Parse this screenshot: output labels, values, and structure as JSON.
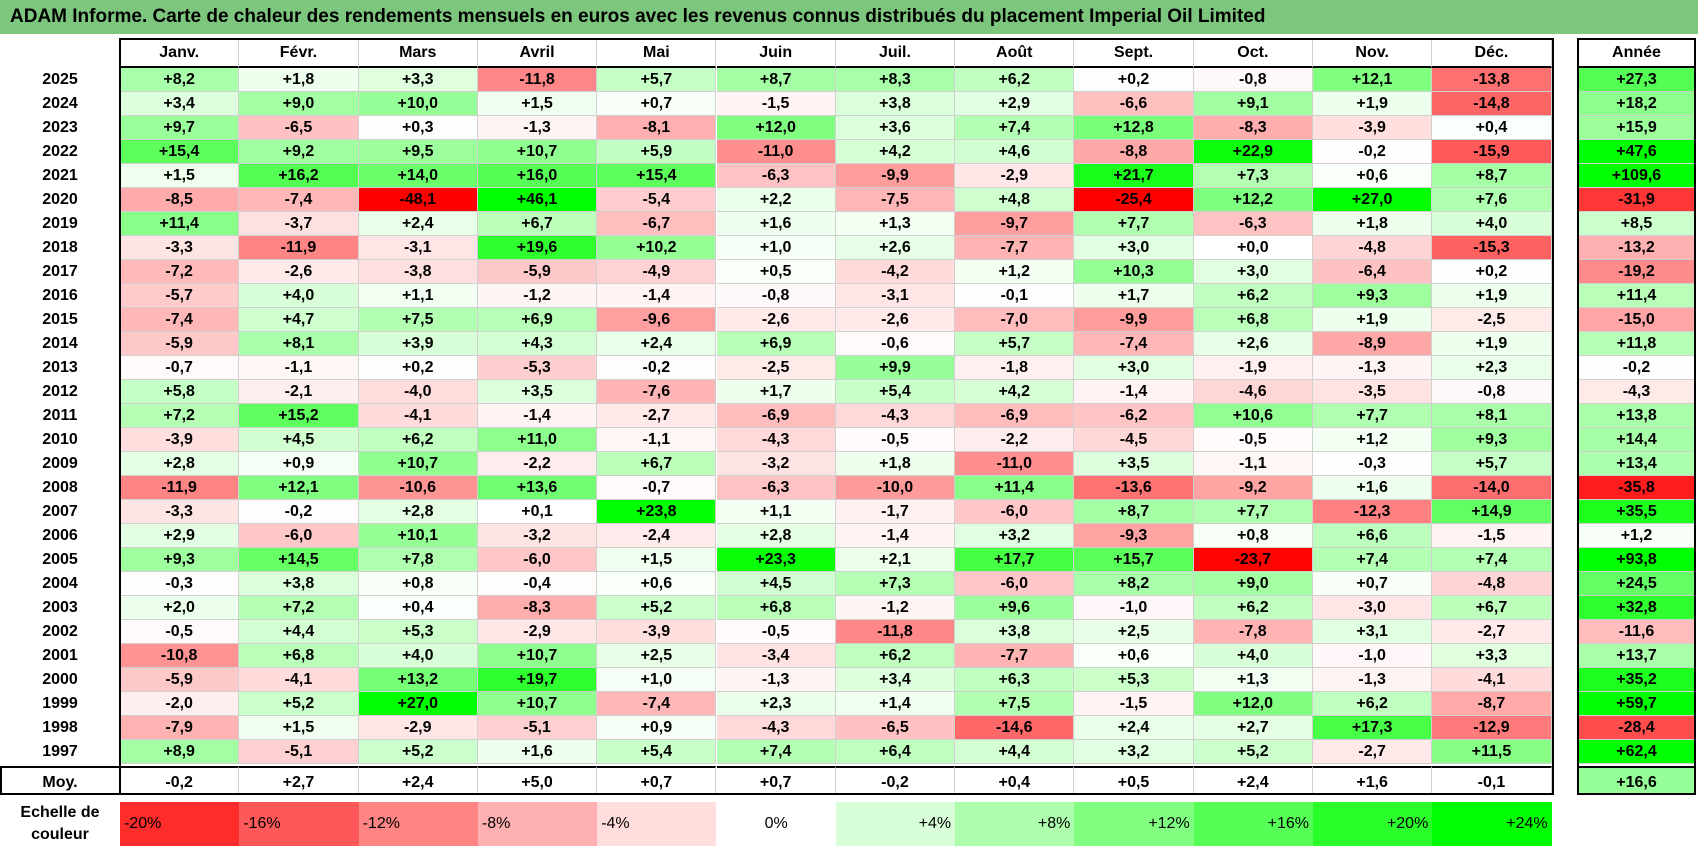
{
  "title": "ADAM Informe. Carte de chaleur des rendements mensuels en euros avec les revenus connus distribués du placement Imperial Oil Limited",
  "colors": {
    "title_bg": "#7dc67d",
    "positive_max": "#00ff00",
    "negative_max": "#ff0000",
    "neutral": "#ffffff"
  },
  "chart_data": {
    "type": "heatmap",
    "title": "ADAM Informe. Carte de chaleur des rendements mensuels en euros avec les revenus connus distribués du placement Imperial Oil Limited",
    "columns": [
      "Janv.",
      "Févr.",
      "Mars",
      "Avril",
      "Mai",
      "Juin",
      "Juil.",
      "Août",
      "Sept.",
      "Oct.",
      "Nov.",
      "Déc."
    ],
    "year_column_label": "Année",
    "rows": [
      {
        "year": "2025",
        "values": [
          "+8,2",
          "+1,8",
          "+3,3",
          "-11,8",
          "+5,7",
          "+8,7",
          "+8,3",
          "+6,2",
          "+0,2",
          "-0,8",
          "+12,1",
          "-13,8"
        ],
        "annual": "+27,3"
      },
      {
        "year": "2024",
        "values": [
          "+3,4",
          "+9,0",
          "+10,0",
          "+1,5",
          "+0,7",
          "-1,5",
          "+3,8",
          "+2,9",
          "-6,6",
          "+9,1",
          "+1,9",
          "-14,8"
        ],
        "annual": "+18,2"
      },
      {
        "year": "2023",
        "values": [
          "+9,7",
          "-6,5",
          "+0,3",
          "-1,3",
          "-8,1",
          "+12,0",
          "+3,6",
          "+7,4",
          "+12,8",
          "-8,3",
          "-3,9",
          "+0,4"
        ],
        "annual": "+15,9"
      },
      {
        "year": "2022",
        "values": [
          "+15,4",
          "+9,2",
          "+9,5",
          "+10,7",
          "+5,9",
          "-11,0",
          "+4,2",
          "+4,6",
          "-8,8",
          "+22,9",
          "-0,2",
          "-15,9"
        ],
        "annual": "+47,6"
      },
      {
        "year": "2021",
        "values": [
          "+1,5",
          "+16,2",
          "+14,0",
          "+16,0",
          "+15,4",
          "-6,3",
          "-9,9",
          "-2,9",
          "+21,7",
          "+7,3",
          "+0,6",
          "+8,7"
        ],
        "annual": "+109,6"
      },
      {
        "year": "2020",
        "values": [
          "-8,5",
          "-7,4",
          "-48,1",
          "+46,1",
          "-5,4",
          "+2,2",
          "-7,5",
          "+4,8",
          "-25,4",
          "+12,2",
          "+27,0",
          "+7,6"
        ],
        "annual": "-31,9"
      },
      {
        "year": "2019",
        "values": [
          "+11,4",
          "-3,7",
          "+2,4",
          "+6,7",
          "-6,7",
          "+1,6",
          "+1,3",
          "-9,7",
          "+7,7",
          "-6,3",
          "+1,8",
          "+4,0"
        ],
        "annual": "+8,5"
      },
      {
        "year": "2018",
        "values": [
          "-3,3",
          "-11,9",
          "-3,1",
          "+19,6",
          "+10,2",
          "+1,0",
          "+2,6",
          "-7,7",
          "+3,0",
          "+0,0",
          "-4,8",
          "-15,3"
        ],
        "annual": "-13,2"
      },
      {
        "year": "2017",
        "values": [
          "-7,2",
          "-2,6",
          "-3,8",
          "-5,9",
          "-4,9",
          "+0,5",
          "-4,2",
          "+1,2",
          "+10,3",
          "+3,0",
          "-6,4",
          "+0,2"
        ],
        "annual": "-19,2"
      },
      {
        "year": "2016",
        "values": [
          "-5,7",
          "+4,0",
          "+1,1",
          "-1,2",
          "-1,4",
          "-0,8",
          "-3,1",
          "-0,1",
          "+1,7",
          "+6,2",
          "+9,3",
          "+1,9"
        ],
        "annual": "+11,4"
      },
      {
        "year": "2015",
        "values": [
          "-7,4",
          "+4,7",
          "+7,5",
          "+6,9",
          "-9,6",
          "-2,6",
          "-2,6",
          "-7,0",
          "-9,9",
          "+6,8",
          "+1,9",
          "-2,5"
        ],
        "annual": "-15,0"
      },
      {
        "year": "2014",
        "values": [
          "-5,9",
          "+8,1",
          "+3,9",
          "+4,3",
          "+2,4",
          "+6,9",
          "-0,6",
          "+5,7",
          "-7,4",
          "+2,6",
          "-8,9",
          "+1,9"
        ],
        "annual": "+11,8"
      },
      {
        "year": "2013",
        "values": [
          "-0,7",
          "-1,1",
          "+0,2",
          "-5,3",
          "-0,2",
          "-2,5",
          "+9,9",
          "-1,8",
          "+3,0",
          "-1,9",
          "-1,3",
          "+2,3"
        ],
        "annual": "-0,2"
      },
      {
        "year": "2012",
        "values": [
          "+5,8",
          "-2,1",
          "-4,0",
          "+3,5",
          "-7,6",
          "+1,7",
          "+5,4",
          "+4,2",
          "-1,4",
          "-4,6",
          "-3,5",
          "-0,8"
        ],
        "annual": "-4,3"
      },
      {
        "year": "2011",
        "values": [
          "+7,2",
          "+15,2",
          "-4,1",
          "-1,4",
          "-2,7",
          "-6,9",
          "-4,3",
          "-6,9",
          "-6,2",
          "+10,6",
          "+7,7",
          "+8,1"
        ],
        "annual": "+13,8"
      },
      {
        "year": "2010",
        "values": [
          "-3,9",
          "+4,5",
          "+6,2",
          "+11,0",
          "-1,1",
          "-4,3",
          "-0,5",
          "-2,2",
          "-4,5",
          "-0,5",
          "+1,2",
          "+9,3"
        ],
        "annual": "+14,4"
      },
      {
        "year": "2009",
        "values": [
          "+2,8",
          "+0,9",
          "+10,7",
          "-2,2",
          "+6,7",
          "-3,2",
          "+1,8",
          "-11,0",
          "+3,5",
          "-1,1",
          "-0,3",
          "+5,7"
        ],
        "annual": "+13,4"
      },
      {
        "year": "2008",
        "values": [
          "-11,9",
          "+12,1",
          "-10,6",
          "+13,6",
          "-0,7",
          "-6,3",
          "-10,0",
          "+11,4",
          "-13,6",
          "-9,2",
          "+1,6",
          "-14,0"
        ],
        "annual": "-35,8"
      },
      {
        "year": "2007",
        "values": [
          "-3,3",
          "-0,2",
          "+2,8",
          "+0,1",
          "+23,8",
          "+1,1",
          "-1,7",
          "-6,0",
          "+8,7",
          "+7,7",
          "-12,3",
          "+14,9"
        ],
        "annual": "+35,5"
      },
      {
        "year": "2006",
        "values": [
          "+2,9",
          "-6,0",
          "+10,1",
          "-3,2",
          "-2,4",
          "+2,8",
          "-1,4",
          "+3,2",
          "-9,3",
          "+0,8",
          "+6,6",
          "-1,5"
        ],
        "annual": "+1,2"
      },
      {
        "year": "2005",
        "values": [
          "+9,3",
          "+14,5",
          "+7,8",
          "-6,0",
          "+1,5",
          "+23,3",
          "+2,1",
          "+17,7",
          "+15,7",
          "-23,7",
          "+7,4",
          "+7,4"
        ],
        "annual": "+93,8"
      },
      {
        "year": "2004",
        "values": [
          "-0,3",
          "+3,8",
          "+0,8",
          "-0,4",
          "+0,6",
          "+4,5",
          "+7,3",
          "-6,0",
          "+8,2",
          "+9,0",
          "+0,7",
          "-4,8"
        ],
        "annual": "+24,5"
      },
      {
        "year": "2003",
        "values": [
          "+2,0",
          "+7,2",
          "+0,4",
          "-8,3",
          "+5,2",
          "+6,8",
          "-1,2",
          "+9,6",
          "-1,0",
          "+6,2",
          "-3,0",
          "+6,7"
        ],
        "annual": "+32,8"
      },
      {
        "year": "2002",
        "values": [
          "-0,5",
          "+4,4",
          "+5,3",
          "-2,9",
          "-3,9",
          "-0,5",
          "-11,8",
          "+3,8",
          "+2,5",
          "-7,8",
          "+3,1",
          "-2,7"
        ],
        "annual": "-11,6"
      },
      {
        "year": "2001",
        "values": [
          "-10,8",
          "+6,8",
          "+4,0",
          "+10,7",
          "+2,5",
          "-3,4",
          "+6,2",
          "-7,7",
          "+0,6",
          "+4,0",
          "-1,0",
          "+3,3"
        ],
        "annual": "+13,7"
      },
      {
        "year": "2000",
        "values": [
          "-5,9",
          "-4,1",
          "+13,2",
          "+19,7",
          "+1,0",
          "-1,3",
          "+3,4",
          "+6,3",
          "+5,3",
          "+1,3",
          "-1,3",
          "-4,1"
        ],
        "annual": "+35,2"
      },
      {
        "year": "1999",
        "values": [
          "-2,0",
          "+5,2",
          "+27,0",
          "+10,7",
          "-7,4",
          "+2,3",
          "+1,4",
          "+7,5",
          "-1,5",
          "+12,0",
          "+6,2",
          "-8,7"
        ],
        "annual": "+59,7"
      },
      {
        "year": "1998",
        "values": [
          "-7,9",
          "+1,5",
          "-2,9",
          "-5,1",
          "+0,9",
          "-4,3",
          "-6,5",
          "-14,6",
          "+2,4",
          "+2,7",
          "+17,3",
          "-12,9"
        ],
        "annual": "-28,4"
      },
      {
        "year": "1997",
        "values": [
          "+8,9",
          "-5,1",
          "+5,2",
          "+1,6",
          "+5,4",
          "+7,4",
          "+6,4",
          "+4,4",
          "+3,2",
          "+5,2",
          "-2,7",
          "+11,5"
        ],
        "annual": "+62,4"
      }
    ],
    "average": {
      "label": "Moy.",
      "values": [
        "-0,2",
        "+2,7",
        "+2,4",
        "+5,0",
        "+0,7",
        "+0,7",
        "-0,2",
        "+0,4",
        "+0,5",
        "+2,4",
        "+1,6",
        "-0,1"
      ],
      "annual": "+16,6"
    },
    "scale": {
      "label": "Echelle de couleur",
      "steps": [
        "-20%",
        "-16%",
        "-12%",
        "-8%",
        "-4%",
        "0%",
        "+4%",
        "+8%",
        "+12%",
        "+16%",
        "+20%",
        "+24%"
      ]
    }
  }
}
